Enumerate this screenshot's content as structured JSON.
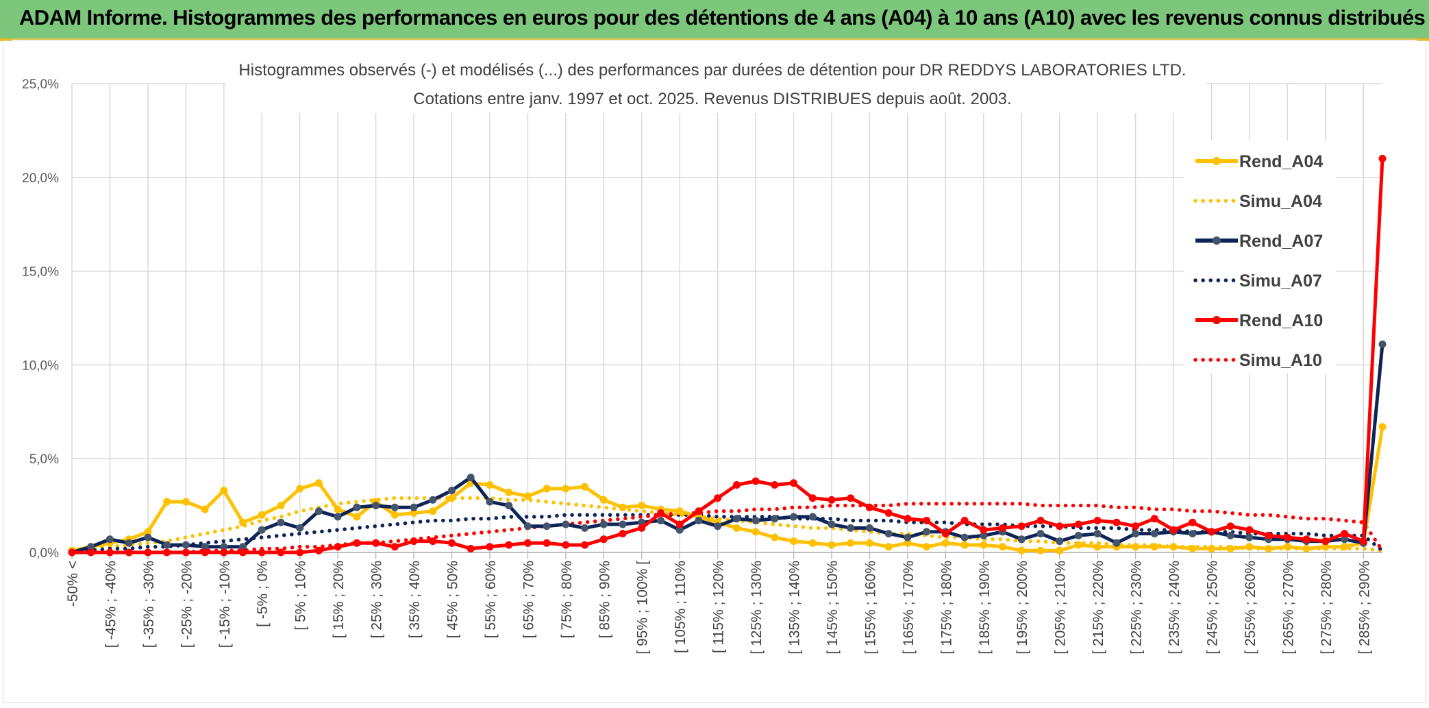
{
  "banner": {
    "title": "ADAM Informe. Histogrammes des performances en euros pour des détentions de 4 ans (A04) à 10 ans (A10) avec les revenus connus distribués"
  },
  "colors": {
    "banner_bg": "#7dc77d",
    "rend_a04": "#ffc000",
    "simu_a04": "#ffc000",
    "rend_a07": "#0e2458",
    "simu_a07": "#0e2458",
    "rend_a10": "#ff0000",
    "simu_a10": "#ff0000",
    "a07_marker": "#44546a",
    "grid": "#d9d9d9"
  },
  "chart_data": {
    "type": "line",
    "title": "Histogrammes observés (-) et modélisés (...) des performances par durées de détention pour DR REDDYS LABORATORIES LTD.",
    "subtitle": "Cotations entre janv. 1997 et oct. 2025. Revenus DISTRIBUES depuis août. 2003.",
    "xlabel": "",
    "ylabel": "",
    "ylim": [
      0,
      25
    ],
    "yticks": [
      "0,0%",
      "5,0%",
      "10,0%",
      "15,0%",
      "20,0%",
      "25,0%"
    ],
    "grid": true,
    "legend_position": "right",
    "category_labels": [
      "-50% <",
      "[ -45% ; -40%",
      "[ -35% ; -30%",
      "[ -25% ; -20%",
      "[ -15% ; -10%",
      "[ -5% ; 0%",
      "[ 5% ; 10%",
      "[ 15% ; 20%",
      "[ 25% ; 30%",
      "[ 35% ; 40%",
      "[ 45% ; 50%",
      "[ 55% ; 60%",
      "[ 65% ; 70%",
      "[ 75% ; 80%",
      "[ 85% ; 90%",
      "[ 95% ; 100% [",
      "[ 105% ; 110%",
      "[ 115% ; 120%",
      "[ 125% ; 130%",
      "[ 135% ; 140%",
      "[ 145% ; 150%",
      "[ 155% ; 160%",
      "[ 165% ; 170%",
      "[ 175% ; 180%",
      "[ 185% ; 190%",
      "[ 195% ; 200%",
      "[ 205% ; 210%",
      "[ 215% ; 220%",
      "[ 225% ; 230%",
      "[ 235% ; 240%",
      "[ 245% ; 250%",
      "[ 255% ; 260%",
      "[ 265% ; 270%",
      "[ 275% ; 280%",
      "[ 285% ; 290%"
    ],
    "series": [
      {
        "name": "Rend_A04",
        "style": "solid",
        "color": "#ffc000",
        "values": [
          0.1,
          0.3,
          0.5,
          0.7,
          1.1,
          2.7,
          2.7,
          2.3,
          3.3,
          1.6,
          2.0,
          2.5,
          3.4,
          3.7,
          2.3,
          1.9,
          2.7,
          2.0,
          2.1,
          2.2,
          2.9,
          3.7,
          3.6,
          3.2,
          3.0,
          3.4,
          3.4,
          3.5,
          2.8,
          2.4,
          2.5,
          2.3,
          2.2,
          1.9,
          1.6,
          1.3,
          1.1,
          0.8,
          0.6,
          0.5,
          0.4,
          0.5,
          0.5,
          0.3,
          0.5,
          0.3,
          0.5,
          0.4,
          0.4,
          0.3,
          0.1,
          0.1,
          0.1,
          0.4,
          0.3,
          0.3,
          0.3,
          0.3,
          0.3,
          0.2,
          0.2,
          0.2,
          0.3,
          0.2,
          0.3,
          0.2,
          0.3,
          0.3,
          0.5,
          6.7
        ]
      },
      {
        "name": "Simu_A04",
        "style": "dotted",
        "color": "#ffc000",
        "values": [
          0.1,
          0.2,
          0.3,
          0.4,
          0.5,
          0.6,
          0.8,
          1.0,
          1.2,
          1.4,
          1.7,
          1.9,
          2.2,
          2.4,
          2.6,
          2.7,
          2.8,
          2.9,
          2.9,
          2.9,
          2.9,
          2.9,
          2.9,
          2.8,
          2.8,
          2.7,
          2.6,
          2.5,
          2.4,
          2.3,
          2.2,
          2.1,
          2.0,
          1.9,
          1.8,
          1.7,
          1.6,
          1.5,
          1.4,
          1.3,
          1.3,
          1.2,
          1.1,
          1.0,
          1.0,
          0.9,
          0.8,
          0.8,
          0.7,
          0.7,
          0.6,
          0.6,
          0.5,
          0.5,
          0.5,
          0.4,
          0.4,
          0.4,
          0.3,
          0.3,
          0.3,
          0.3,
          0.2,
          0.2,
          0.2,
          0.2,
          0.2,
          0.2,
          0.2,
          0.1
        ]
      },
      {
        "name": "Rend_A07",
        "style": "solid",
        "color": "#0e2458",
        "values": [
          0.0,
          0.3,
          0.7,
          0.5,
          0.8,
          0.4,
          0.4,
          0.3,
          0.3,
          0.3,
          1.2,
          1.6,
          1.3,
          2.2,
          1.9,
          2.4,
          2.5,
          2.4,
          2.4,
          2.8,
          3.3,
          4.0,
          2.7,
          2.5,
          1.4,
          1.4,
          1.5,
          1.3,
          1.5,
          1.5,
          1.6,
          1.7,
          1.2,
          1.7,
          1.4,
          1.8,
          1.7,
          1.8,
          1.9,
          1.9,
          1.5,
          1.3,
          1.3,
          1.0,
          0.8,
          1.1,
          1.1,
          0.8,
          0.9,
          1.1,
          0.7,
          1.0,
          0.6,
          0.9,
          1.0,
          0.5,
          1.0,
          1.0,
          1.1,
          1.0,
          1.1,
          0.9,
          0.8,
          0.7,
          0.7,
          0.6,
          0.6,
          0.7,
          0.5,
          11.1
        ]
      },
      {
        "name": "Simu_A07",
        "style": "dotted",
        "color": "#0e2458",
        "values": [
          0.1,
          0.1,
          0.2,
          0.2,
          0.3,
          0.3,
          0.4,
          0.5,
          0.6,
          0.7,
          0.8,
          0.9,
          1.0,
          1.1,
          1.2,
          1.3,
          1.4,
          1.5,
          1.6,
          1.7,
          1.7,
          1.8,
          1.8,
          1.9,
          1.9,
          1.9,
          2.0,
          2.0,
          2.0,
          2.0,
          2.0,
          2.0,
          2.0,
          2.0,
          1.9,
          1.9,
          1.9,
          1.9,
          1.8,
          1.8,
          1.8,
          1.7,
          1.7,
          1.7,
          1.6,
          1.6,
          1.6,
          1.5,
          1.5,
          1.5,
          1.4,
          1.4,
          1.4,
          1.3,
          1.3,
          1.3,
          1.2,
          1.2,
          1.2,
          1.1,
          1.1,
          1.1,
          1.0,
          1.0,
          1.0,
          1.0,
          0.9,
          0.9,
          0.9,
          0.1
        ]
      },
      {
        "name": "Rend_A10",
        "style": "solid",
        "color": "#ff0000",
        "values": [
          0.0,
          0.0,
          0.0,
          0.0,
          0.0,
          0.0,
          0.0,
          0.0,
          0.0,
          0.0,
          0.0,
          0.0,
          0.0,
          0.1,
          0.3,
          0.5,
          0.5,
          0.3,
          0.6,
          0.6,
          0.5,
          0.2,
          0.3,
          0.4,
          0.5,
          0.5,
          0.4,
          0.4,
          0.7,
          1.0,
          1.3,
          2.1,
          1.5,
          2.2,
          2.9,
          3.6,
          3.8,
          3.6,
          3.7,
          2.9,
          2.8,
          2.9,
          2.4,
          2.1,
          1.8,
          1.7,
          1.0,
          1.7,
          1.2,
          1.3,
          1.4,
          1.7,
          1.4,
          1.5,
          1.7,
          1.6,
          1.4,
          1.8,
          1.2,
          1.6,
          1.1,
          1.4,
          1.2,
          0.9,
          0.8,
          0.7,
          0.6,
          1.0,
          0.6,
          21.0
        ]
      },
      {
        "name": "Simu_A10",
        "style": "dotted",
        "color": "#ff0000",
        "values": [
          0.0,
          0.0,
          0.0,
          0.0,
          0.0,
          0.0,
          0.0,
          0.1,
          0.1,
          0.1,
          0.2,
          0.2,
          0.3,
          0.3,
          0.4,
          0.5,
          0.5,
          0.6,
          0.7,
          0.8,
          0.9,
          1.0,
          1.1,
          1.2,
          1.3,
          1.4,
          1.5,
          1.6,
          1.7,
          1.8,
          1.9,
          2.0,
          2.1,
          2.1,
          2.2,
          2.2,
          2.3,
          2.3,
          2.4,
          2.4,
          2.5,
          2.5,
          2.5,
          2.5,
          2.6,
          2.6,
          2.6,
          2.6,
          2.6,
          2.6,
          2.6,
          2.5,
          2.5,
          2.5,
          2.5,
          2.4,
          2.4,
          2.3,
          2.3,
          2.2,
          2.2,
          2.1,
          2.0,
          2.0,
          1.9,
          1.8,
          1.8,
          1.7,
          1.6,
          0.1
        ]
      }
    ]
  }
}
